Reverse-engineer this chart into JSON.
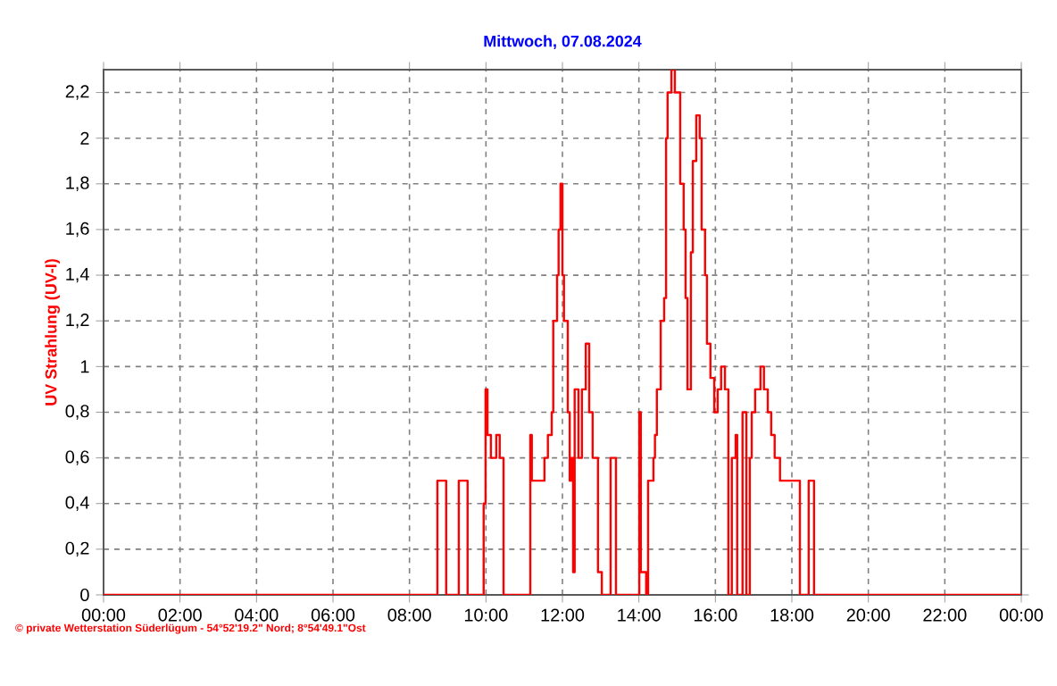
{
  "chart_data": {
    "type": "step",
    "title": "Mittwoch, 07.08.2024",
    "ylabel": "UV Strahlung  (UV-I)",
    "annotations": [
      "© private Wetterstation Süderlügum - 54°52'19.2\" Nord; 8°54'49.1\"Ost"
    ],
    "xlim": [
      0,
      24
    ],
    "ylim": [
      0,
      2.3
    ],
    "xticks": [
      {
        "value": 0,
        "label": "00:00"
      },
      {
        "value": 2,
        "label": "02:00"
      },
      {
        "value": 4,
        "label": "04:00"
      },
      {
        "value": 6,
        "label": "06:00"
      },
      {
        "value": 8,
        "label": "08:00"
      },
      {
        "value": 10,
        "label": "10:00"
      },
      {
        "value": 12,
        "label": "12:00"
      },
      {
        "value": 14,
        "label": "14:00"
      },
      {
        "value": 16,
        "label": "16:00"
      },
      {
        "value": 18,
        "label": "18:00"
      },
      {
        "value": 20,
        "label": "20:00"
      },
      {
        "value": 22,
        "label": "22:00"
      },
      {
        "value": 24,
        "label": "00:00"
      }
    ],
    "yticks": [
      0,
      {
        "value": 0.2,
        "label": "0,2"
      },
      {
        "value": 0.4,
        "label": "0,4"
      },
      {
        "value": 0.6,
        "label": "0,6"
      },
      {
        "value": 0.8,
        "label": "0,8"
      },
      1,
      {
        "value": 1.2,
        "label": "1,2"
      },
      {
        "value": 1.4,
        "label": "1,4"
      },
      {
        "value": 1.6,
        "label": "1,6"
      },
      {
        "value": 1.8,
        "label": "1,8"
      },
      2,
      {
        "value": 2.2,
        "label": "2,2"
      }
    ],
    "grid": true,
    "marker": "none",
    "line_style": "solid",
    "series": [
      {
        "color": "#ff0000",
        "x": [
          0,
          8.73,
          8.96,
          9.29,
          9.52,
          9.94,
          9.99,
          10.04,
          10.13,
          10.27,
          10.36,
          10.46,
          11.16,
          11.2,
          11.3,
          11.53,
          11.62,
          11.72,
          11.76,
          11.86,
          11.9,
          11.95,
          12.0,
          12.04,
          12.14,
          12.19,
          12.23,
          12.28,
          12.32,
          12.42,
          12.51,
          12.61,
          12.7,
          12.79,
          12.93,
          13.03,
          13.26,
          13.4,
          14.01,
          14.05,
          14.19,
          14.24,
          14.38,
          14.42,
          14.47,
          14.57,
          14.66,
          14.71,
          14.75,
          14.85,
          14.94,
          15.08,
          15.17,
          15.22,
          15.27,
          15.36,
          15.41,
          15.5,
          15.59,
          15.64,
          15.73,
          15.78,
          15.87,
          15.97,
          16.06,
          16.15,
          16.25,
          16.34,
          16.43,
          16.53,
          16.57,
          16.71,
          16.81,
          16.9,
          16.95,
          17.04,
          17.18,
          17.27,
          17.37,
          17.46,
          17.55,
          17.69,
          17.88,
          18.21,
          18.44,
          18.58,
          24
        ],
        "values": [
          0,
          0.5,
          0,
          0.5,
          0,
          0.4,
          0.9,
          0.7,
          0.6,
          0.7,
          0.6,
          0,
          0.7,
          0.5,
          0.5,
          0.6,
          0.7,
          0.8,
          1.2,
          1.4,
          1.6,
          1.8,
          1.4,
          1.2,
          0.8,
          0.5,
          0.6,
          0.1,
          0.9,
          0.6,
          0.9,
          1.1,
          0.8,
          0.6,
          0.1,
          0,
          0.6,
          0,
          0.8,
          0.1,
          0,
          0.5,
          0.6,
          0.7,
          0.9,
          1.2,
          1.3,
          2.0,
          2.2,
          2.3,
          2.2,
          1.8,
          1.6,
          1.3,
          0.9,
          1.5,
          1.9,
          2.1,
          2.0,
          1.6,
          1.4,
          1.1,
          0.95,
          0.8,
          0.9,
          1.0,
          0.9,
          0,
          0.6,
          0.7,
          0,
          0.8,
          0,
          0.6,
          0.8,
          0.9,
          1.0,
          0.9,
          0.8,
          0.7,
          0.6,
          0.5,
          0.5,
          0,
          0.5,
          0,
          0
        ]
      }
    ]
  }
}
